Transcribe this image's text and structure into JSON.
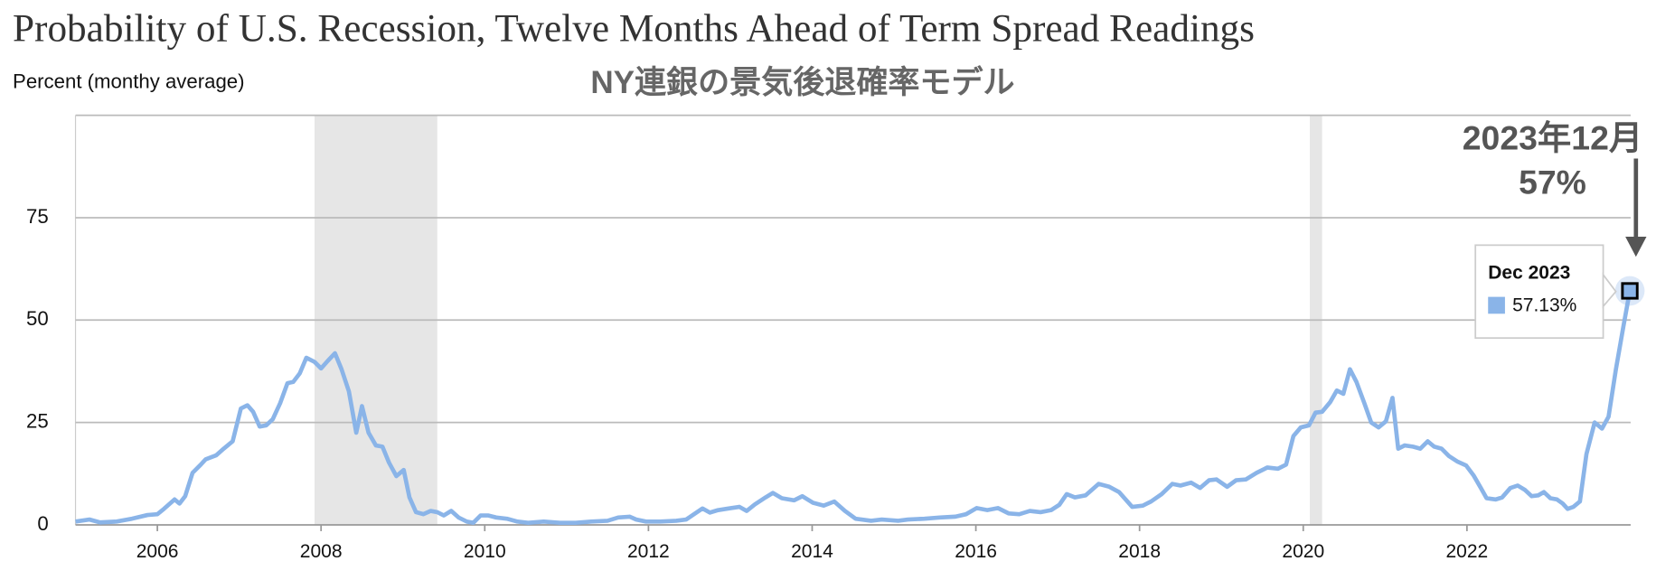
{
  "chart_data": {
    "type": "line",
    "title": "Probability of U.S. Recession, Twelve Months Ahead of Term Spread Readings",
    "subtitle": "NY連銀の景気後退確率モデル",
    "y_axis_label": "Percent (monthy average)",
    "annotation": {
      "date": "2023年12月",
      "value": "57%"
    },
    "tooltip": {
      "title": "Dec 2023",
      "value_label": "57.13%"
    },
    "color": "#8ab4e8",
    "shade_color": "#e6e6e6",
    "shaded_ranges": [
      [
        2007.92,
        2009.42
      ],
      [
        2020.08,
        2020.23
      ]
    ],
    "xlim": [
      2005,
      2024
    ],
    "xticks": [
      2006,
      2008,
      2010,
      2012,
      2014,
      2016,
      2018,
      2020,
      2022
    ],
    "ylim": [
      0,
      100
    ],
    "yticks": [
      0,
      25,
      50,
      75
    ],
    "grid": true,
    "x": [
      2005.0,
      2005.17,
      2005.3,
      2005.5,
      2005.69,
      2005.88,
      2006.0,
      2006.08,
      2006.21,
      2006.27,
      2006.34,
      2006.43,
      2006.53,
      2006.59,
      2006.72,
      2006.81,
      2006.92,
      2007.02,
      2007.1,
      2007.17,
      2007.25,
      2007.33,
      2007.41,
      2007.5,
      2007.59,
      2007.66,
      2007.74,
      2007.82,
      2007.92,
      2008.0,
      2008.08,
      2008.17,
      2008.25,
      2008.34,
      2008.43,
      2008.5,
      2008.58,
      2008.67,
      2008.75,
      2008.83,
      2008.92,
      2009.01,
      2009.08,
      2009.16,
      2009.25,
      2009.34,
      2009.42,
      2009.5,
      2009.59,
      2009.68,
      2009.78,
      2009.86,
      2009.95,
      2010.04,
      2010.14,
      2010.27,
      2010.4,
      2010.53,
      2010.72,
      2010.92,
      2011.11,
      2011.3,
      2011.5,
      2011.63,
      2011.77,
      2011.85,
      2011.97,
      2012.14,
      2012.34,
      2012.46,
      2012.66,
      2012.75,
      2012.85,
      2012.98,
      2013.11,
      2013.2,
      2013.3,
      2013.43,
      2013.52,
      2013.63,
      2013.78,
      2013.88,
      2014.01,
      2014.14,
      2014.27,
      2014.4,
      2014.53,
      2014.72,
      2014.85,
      2015.05,
      2015.17,
      2015.37,
      2015.56,
      2015.75,
      2015.88,
      2016.01,
      2016.14,
      2016.27,
      2016.4,
      2016.53,
      2016.66,
      2016.79,
      2016.92,
      2017.02,
      2017.11,
      2017.21,
      2017.34,
      2017.5,
      2017.63,
      2017.75,
      2017.91,
      2018.04,
      2018.14,
      2018.27,
      2018.4,
      2018.5,
      2018.63,
      2018.74,
      2018.85,
      2018.94,
      2019.07,
      2019.18,
      2019.3,
      2019.43,
      2019.56,
      2019.69,
      2019.79,
      2019.88,
      2019.97,
      2020.07,
      2020.15,
      2020.23,
      2020.33,
      2020.41,
      2020.49,
      2020.57,
      2020.65,
      2020.75,
      2020.83,
      2020.92,
      2021.01,
      2021.09,
      2021.16,
      2021.24,
      2021.34,
      2021.43,
      2021.52,
      2021.6,
      2021.69,
      2021.78,
      2021.88,
      2021.99,
      2022.08,
      2022.17,
      2022.24,
      2022.35,
      2022.43,
      2022.53,
      2022.62,
      2022.71,
      2022.79,
      2022.87,
      2022.94,
      2023.02,
      2023.1,
      2023.17,
      2023.23,
      2023.3,
      2023.38,
      2023.46,
      2023.56,
      2023.65,
      2023.73,
      2023.82,
      2023.91,
      2023.99
    ],
    "values": [
      0.8,
      1.3,
      0.6,
      0.8,
      1.5,
      2.4,
      2.6,
      3.9,
      6.2,
      5.2,
      7,
      12.7,
      14.7,
      16,
      17,
      18.6,
      20.4,
      28.4,
      29.2,
      27.6,
      24,
      24.3,
      25.8,
      29.7,
      34.6,
      34.9,
      37,
      40.8,
      39.8,
      38.2,
      40,
      41.9,
      38,
      32.6,
      22.5,
      29,
      22.5,
      19.4,
      19.1,
      15.2,
      11.9,
      13.4,
      6.7,
      3.1,
      2.6,
      3.4,
      3.1,
      2.3,
      3.4,
      1.8,
      0.8,
      0.5,
      2.3,
      2.3,
      1.8,
      1.5,
      0.8,
      0.5,
      0.8,
      0.5,
      0.5,
      0.8,
      1,
      1.8,
      2,
      1.3,
      0.8,
      0.8,
      1,
      1.3,
      4,
      3,
      3.6,
      4,
      4.4,
      3.4,
      5,
      6.7,
      7.8,
      6.5,
      6,
      7,
      5.4,
      4.7,
      5.7,
      3.4,
      1.5,
      1,
      1.3,
      1,
      1.3,
      1.5,
      1.8,
      2,
      2.6,
      4.1,
      3.6,
      4.1,
      2.8,
      2.6,
      3.4,
      3.1,
      3.6,
      4.9,
      7.5,
      6.7,
      7.2,
      10,
      9.3,
      8,
      4.4,
      4.7,
      5.7,
      7.5,
      10,
      9.6,
      10.3,
      9,
      10.9,
      11.1,
      9.3,
      10.9,
      11.1,
      12.7,
      14,
      13.7,
      14.7,
      21.7,
      23.8,
      24.3,
      27.4,
      27.6,
      30,
      32.8,
      32,
      38,
      34.9,
      29.5,
      25,
      23.8,
      25.3,
      31,
      18.6,
      19.4,
      19.1,
      18.6,
      20.4,
      19.1,
      18.6,
      16.8,
      15.5,
      14.5,
      12.1,
      9,
      6.5,
      6.2,
      6.7,
      9,
      9.6,
      8.5,
      7,
      7.2,
      8,
      6.5,
      6.2,
      5.2,
      3.9,
      4.4,
      5.7,
      17.3,
      25,
      23.5,
      26.4,
      38,
      48.3,
      57.13
    ]
  }
}
